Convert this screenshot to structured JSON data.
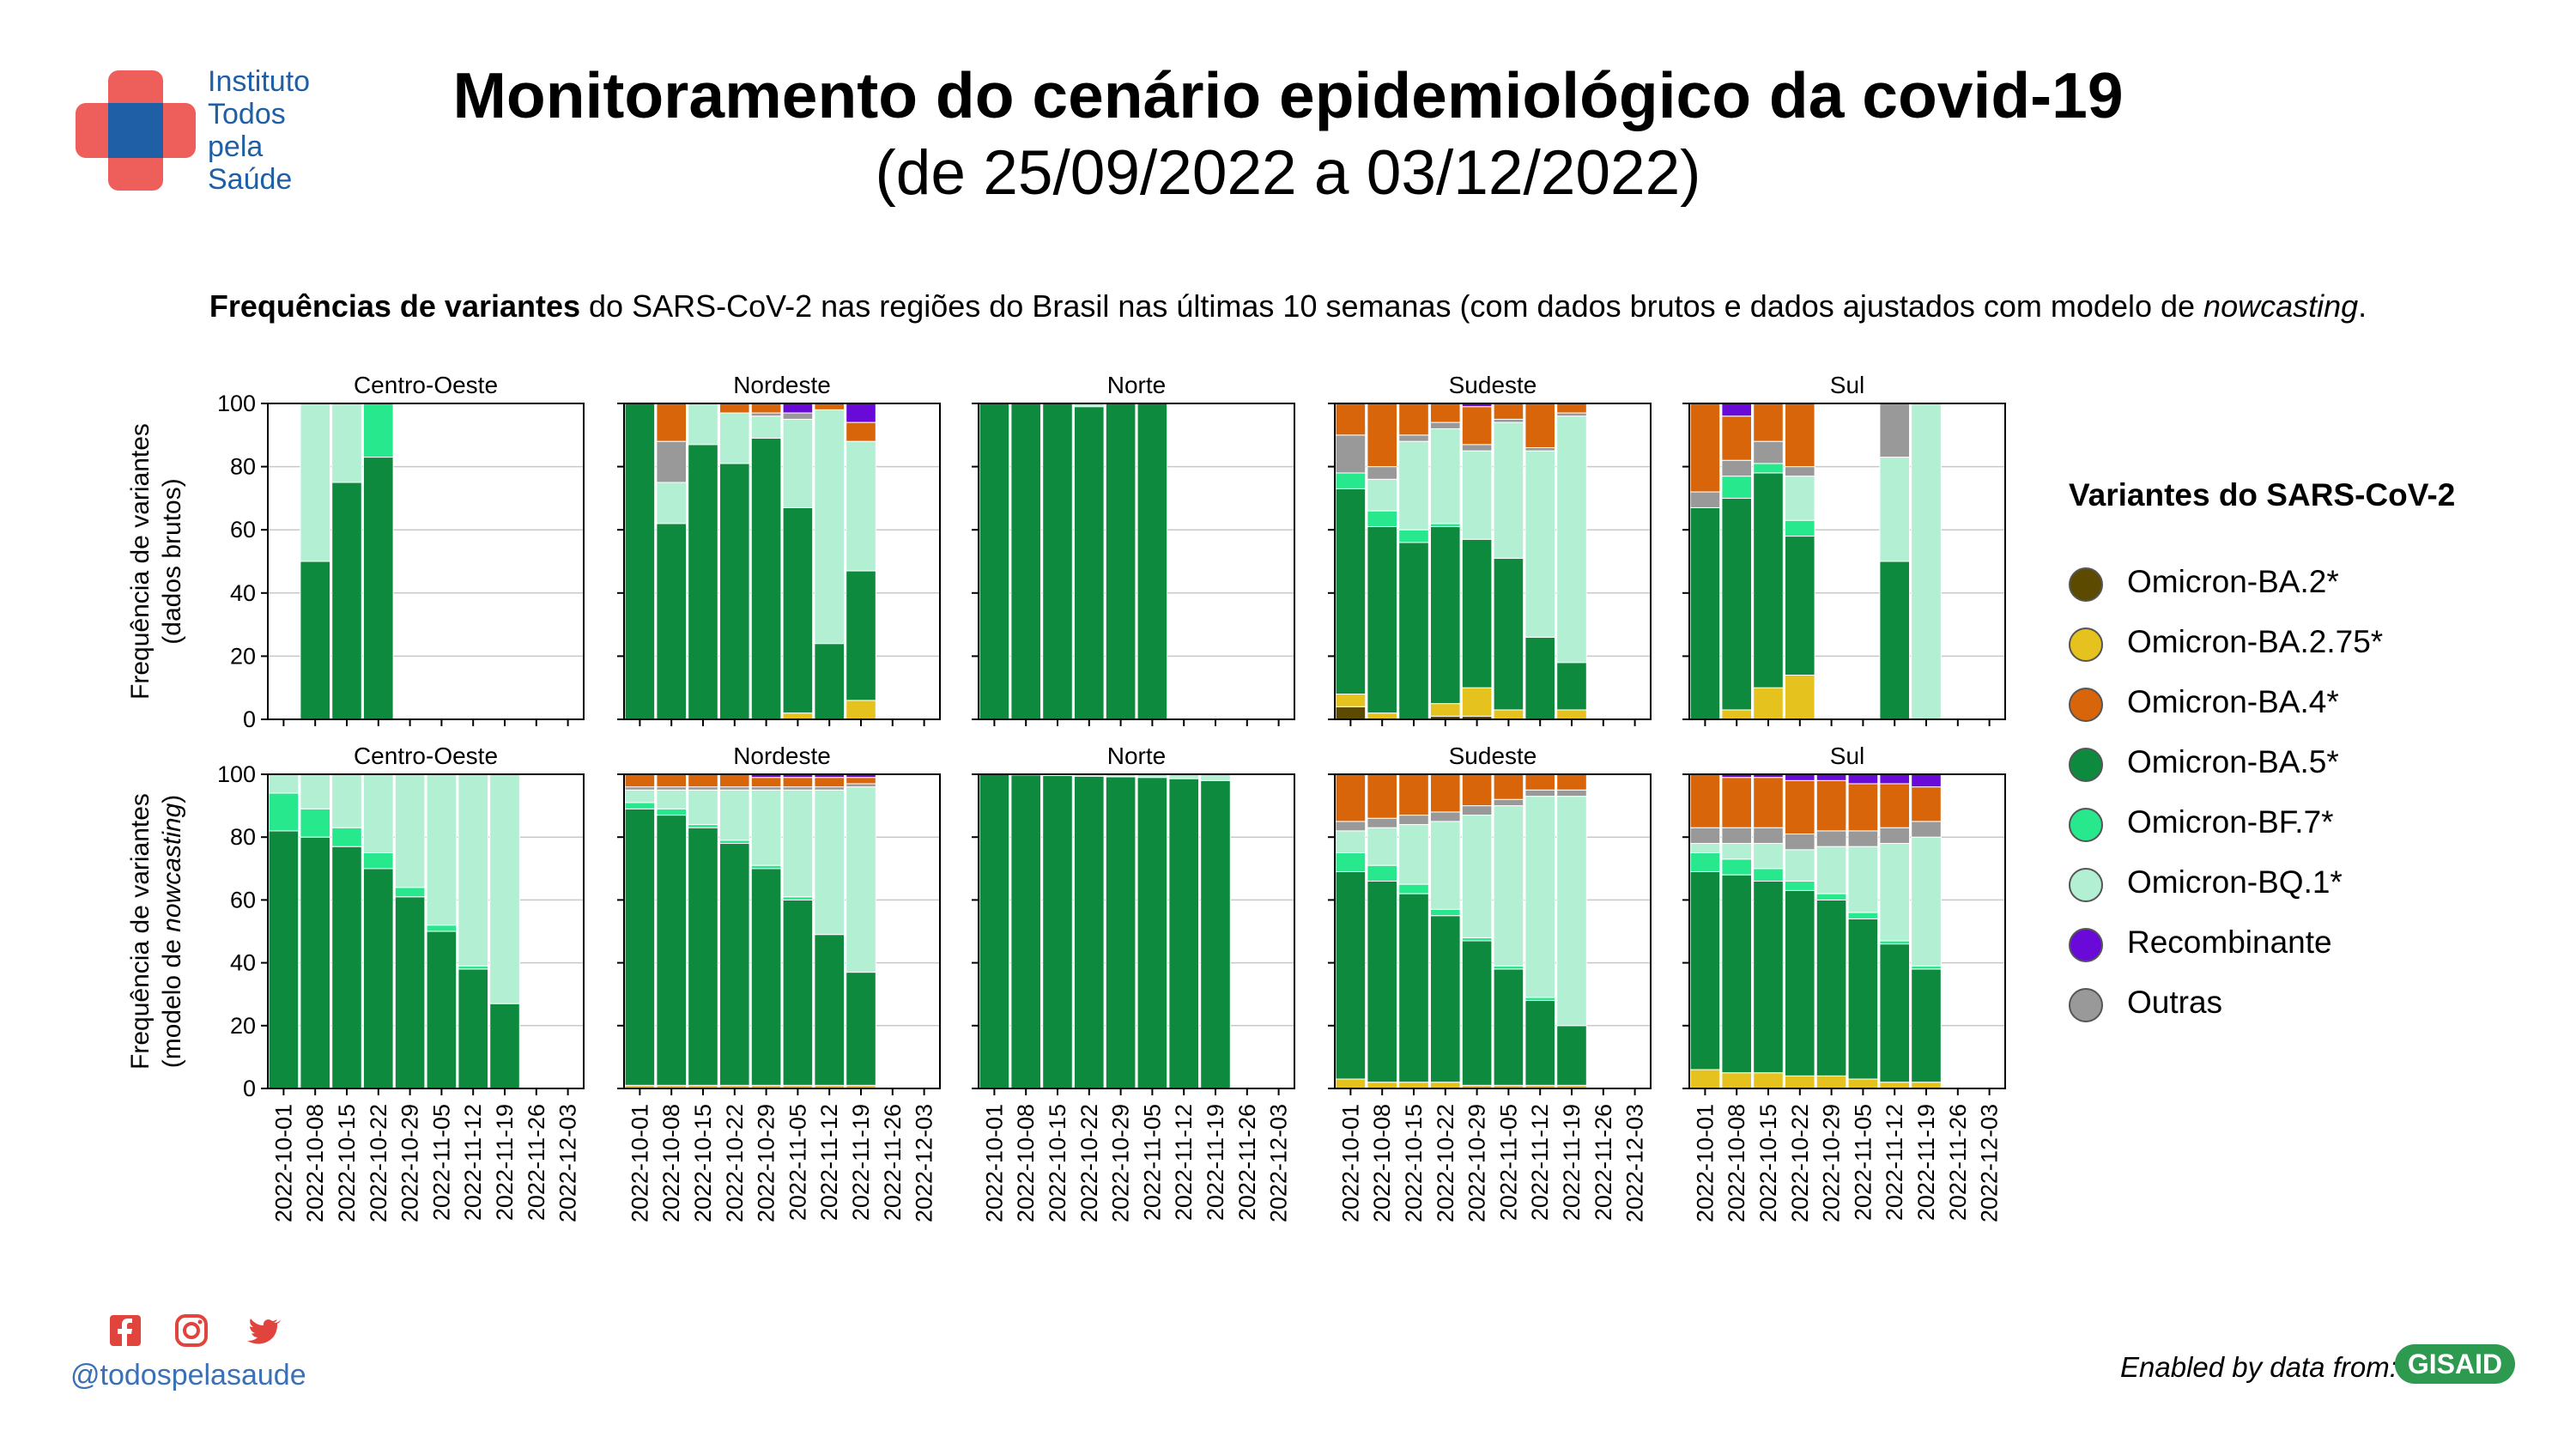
{
  "header": {
    "logo_lines": [
      "Instituto",
      "Todos",
      "pela",
      "Saúde"
    ],
    "title": "Monitoramento do cenário epidemiológico da covid-19",
    "subtitle": "(de 25/09/2022 a 03/12/2022)",
    "description_bold": "Frequências de variantes",
    "description_middle": " do SARS-CoV-2 nas regiões do Brasil nas últimas 10 semanas (com dados brutos e dados ajustados com modelo de ",
    "description_italic": "nowcasting",
    "description_end": "."
  },
  "legend": {
    "title": "Variantes do SARS-CoV-2",
    "items": [
      {
        "label": "Omicron-BA.2*",
        "color": "#5c4a00"
      },
      {
        "label": "Omicron-BA.2.75*",
        "color": "#e6c21f"
      },
      {
        "label": "Omicron-BA.4*",
        "color": "#d8650a"
      },
      {
        "label": "Omicron-BA.5*",
        "color": "#0e8a3e"
      },
      {
        "label": "Omicron-BF.7*",
        "color": "#27e88c"
      },
      {
        "label": "Omicron-BQ.1*",
        "color": "#b3efd3"
      },
      {
        "label": "Recombinante",
        "color": "#6a0ad8"
      },
      {
        "label": "Outras",
        "color": "#999999"
      }
    ]
  },
  "footer": {
    "handle": "@todospelasaude",
    "credit": "Enabled by data from:",
    "gisaid": "GISAID"
  },
  "chart_data": {
    "type": "bar",
    "stacked": true,
    "dates": [
      "2022-10-01",
      "2022-10-08",
      "2022-10-15",
      "2022-10-22",
      "2022-10-29",
      "2022-11-05",
      "2022-11-12",
      "2022-11-19",
      "2022-11-26",
      "2022-12-03"
    ],
    "ylim": [
      0,
      100
    ],
    "yticks": [
      0,
      20,
      40,
      60,
      80,
      100
    ],
    "row_ylabels": [
      [
        "Frequência de variantes",
        "(dados brutos)"
      ],
      [
        "Frequência de variantes",
        "(modelo de ",
        "nowcasting",
        ")"
      ]
    ],
    "stack_order": [
      "Omicron-BA.2*",
      "Omicron-BA.2.75*",
      "Omicron-BA.5*",
      "Omicron-BF.7*",
      "Omicron-BQ.1*",
      "Outras",
      "Omicron-BA.4*",
      "Recombinante"
    ],
    "panels": [
      {
        "row": "raw",
        "region": "Centro-Oeste",
        "bars": [
          null,
          {
            "BA.5": 50,
            "BQ.1": 50
          },
          {
            "BA.5": 75,
            "BQ.1": 25
          },
          {
            "BA.5": 83,
            "BF.7": 17
          },
          null,
          null,
          null,
          null,
          null,
          null
        ]
      },
      {
        "row": "raw",
        "region": "Nordeste",
        "bars": [
          {
            "BA.5": 100
          },
          {
            "BA.5": 62,
            "BQ.1": 13,
            "Outras": 13,
            "BA.4": 12
          },
          {
            "BA.5": 87,
            "BQ.1": 13
          },
          {
            "BA.5": 81,
            "BQ.1": 16,
            "BA.4": 3
          },
          {
            "BA.5": 89,
            "BQ.1": 7,
            "BA.4": 3,
            "Outras": 1
          },
          {
            "BA.5": 65,
            "BQ.1": 28,
            "BA.2.75": 2,
            "Outras": 2,
            "Recombinante": 3
          },
          {
            "BA.5": 24,
            "BQ.1": 74,
            "BA.4": 2
          },
          {
            "BA.5": 41,
            "BQ.1": 41,
            "BA.4": 6,
            "BA.2.75": 6,
            "Recombinante": 6
          },
          null,
          null
        ]
      },
      {
        "row": "raw",
        "region": "Norte",
        "bars": [
          {
            "BA.5": 100
          },
          {
            "BA.5": 100
          },
          {
            "BA.5": 100
          },
          {
            "BA.5": 99,
            "BQ.1": 1
          },
          {
            "BA.5": 100
          },
          {
            "BA.5": 100
          },
          null,
          null,
          null,
          null
        ]
      },
      {
        "row": "raw",
        "region": "Sudeste",
        "bars": [
          {
            "BA.2.75": 4,
            "BA.5": 65,
            "Outras": 12,
            "BA.4": 10,
            "BA.2": 4,
            "BF.7": 5
          },
          {
            "BA.5": 59,
            "BQ.1": 10,
            "Outras": 4,
            "BA.4": 20,
            "BF.7": 5,
            "BA.2.75": 2
          },
          {
            "BA.5": 56,
            "BQ.1": 28,
            "Outras": 2,
            "BA.4": 10,
            "BF.7": 4
          },
          {
            "BF.7": 1,
            "BA.5": 56,
            "BQ.1": 30,
            "Outras": 2,
            "BA.4": 6,
            "BA.2.75": 4,
            "BA.2": 1
          },
          {
            "BA.5": 47,
            "BQ.1": 28,
            "Outras": 2,
            "BA.4": 12,
            "BA.2": 1,
            "BA.2.75": 9,
            "Recombinante": 1
          },
          {
            "BA.5": 48,
            "BQ.1": 43,
            "Outras": 1,
            "BA.4": 5,
            "BA.2.75": 3
          },
          {
            "BA.5": 26,
            "BQ.1": 59,
            "Outras": 1,
            "BA.4": 14
          },
          {
            "BA.5": 15,
            "BQ.1": 78,
            "Outras": 1,
            "BA.4": 3,
            "BA.2.75": 3
          },
          null,
          null
        ]
      },
      {
        "row": "raw",
        "region": "Sul",
        "bars": [
          {
            "BA.5": 67,
            "Outras": 5,
            "BA.4": 28
          },
          {
            "BA.5": 67,
            "Outras": 5,
            "BA.4": 14,
            "BF.7": 7,
            "BA.2.75": 3,
            "Recombinante": 4
          },
          {
            "BF.7": 3,
            "BA.5": 68,
            "Outras": 7,
            "BA.4": 12,
            "BA.2.75": 10
          },
          {
            "BA.5": 44,
            "BQ.1": 14,
            "Outras": 3,
            "BA.4": 20,
            "BF.7": 5,
            "BA.2.75": 14
          },
          null,
          null,
          {
            "BA.5": 50,
            "BQ.1": 33,
            "Outras": 17
          },
          {
            "BQ.1": 100
          },
          null,
          null
        ]
      },
      {
        "row": "nowcast",
        "region": "Centro-Oeste",
        "bars": [
          {
            "BA.5": 82,
            "BF.7": 12,
            "BQ.1": 6
          },
          {
            "BA.5": 80,
            "BF.7": 9,
            "BQ.1": 11
          },
          {
            "BA.5": 77,
            "BF.7": 6,
            "BQ.1": 17
          },
          {
            "BA.5": 70,
            "BF.7": 5,
            "BQ.1": 25
          },
          {
            "BA.5": 61,
            "BF.7": 3,
            "BQ.1": 36
          },
          {
            "BA.5": 50,
            "BF.7": 2,
            "BQ.1": 48
          },
          {
            "BA.5": 38,
            "BF.7": 1,
            "BQ.1": 61
          },
          {
            "BA.5": 27,
            "BQ.1": 73
          },
          null,
          null
        ]
      },
      {
        "row": "nowcast",
        "region": "Nordeste",
        "bars": [
          {
            "BA.2.75": 1,
            "BA.5": 88,
            "BF.7": 2,
            "BQ.1": 4,
            "Outras": 1,
            "BA.4": 4
          },
          {
            "BA.2.75": 1,
            "BA.5": 86,
            "BF.7": 2,
            "BQ.1": 6,
            "Outras": 1,
            "BA.4": 4
          },
          {
            "BA.2.75": 1,
            "BA.5": 82,
            "BF.7": 1,
            "BQ.1": 11,
            "Outras": 1,
            "BA.4": 4
          },
          {
            "BA.2.75": 1,
            "BA.5": 77,
            "BF.7": 1,
            "BQ.1": 16,
            "Outras": 1,
            "BA.4": 4
          },
          {
            "BA.2.75": 1,
            "BA.5": 69,
            "BF.7": 1,
            "BQ.1": 24,
            "Outras": 1,
            "BA.4": 3,
            "Recombinante": 1
          },
          {
            "BA.2.75": 1,
            "BA.5": 59,
            "BF.7": 1,
            "BQ.1": 34,
            "Outras": 1,
            "BA.4": 3,
            "Recombinante": 1
          },
          {
            "BA.2.75": 1,
            "BA.5": 48,
            "BQ.1": 46,
            "Outras": 1,
            "BA.4": 3,
            "Recombinante": 1
          },
          {
            "BA.2.75": 1,
            "BA.5": 36,
            "BQ.1": 59,
            "Outras": 1,
            "BA.4": 2,
            "Recombinante": 1
          },
          null,
          null
        ]
      },
      {
        "row": "nowcast",
        "region": "Norte",
        "bars": [
          {
            "BA.5": 100
          },
          {
            "BA.5": 99.8,
            "BQ.1": 0.2
          },
          {
            "BA.5": 99.6,
            "BQ.1": 0.4
          },
          {
            "BA.5": 99.4,
            "BQ.1": 0.6
          },
          {
            "BA.5": 99.2,
            "BQ.1": 0.8
          },
          {
            "BA.5": 99,
            "BQ.1": 1
          },
          {
            "BA.5": 98.6,
            "BQ.1": 1.4
          },
          {
            "BA.5": 98,
            "BQ.1": 2
          },
          null,
          null
        ]
      },
      {
        "row": "nowcast",
        "region": "Sudeste",
        "bars": [
          {
            "BA.2.75": 3,
            "BA.5": 66,
            "BF.7": 6,
            "BQ.1": 7,
            "Outras": 3,
            "BA.4": 15
          },
          {
            "BA.2.75": 2,
            "BA.5": 64,
            "BF.7": 5,
            "BQ.1": 12,
            "Outras": 3,
            "BA.4": 14
          },
          {
            "BA.2.75": 2,
            "BA.5": 60,
            "BF.7": 3,
            "BQ.1": 19,
            "Outras": 3,
            "BA.4": 13
          },
          {
            "BA.2.75": 2,
            "BA.5": 53,
            "BF.7": 2,
            "BQ.1": 28,
            "Outras": 3,
            "BA.4": 12
          },
          {
            "BA.2.75": 1,
            "BA.5": 46,
            "BF.7": 1,
            "BQ.1": 39,
            "Outras": 3,
            "BA.4": 10
          },
          {
            "BA.2.75": 1,
            "BA.5": 37,
            "BF.7": 1,
            "BQ.1": 51,
            "Outras": 2,
            "BA.4": 8
          },
          {
            "BA.2.75": 1,
            "BA.5": 27,
            "BF.7": 1,
            "BQ.1": 64,
            "Outras": 2,
            "BA.4": 5
          },
          {
            "BA.2.75": 1,
            "BA.5": 19,
            "BQ.1": 73,
            "Outras": 2,
            "BA.4": 5
          },
          null,
          null
        ]
      },
      {
        "row": "nowcast",
        "region": "Sul",
        "bars": [
          {
            "BA.2.75": 6,
            "BA.5": 63,
            "BF.7": 6,
            "BQ.1": 3,
            "Outras": 5,
            "BA.4": 17
          },
          {
            "BA.2.75": 5,
            "BA.5": 63,
            "BF.7": 5,
            "BQ.1": 5,
            "Outras": 5,
            "BA.4": 16,
            "Recombinante": 1
          },
          {
            "BA.2.75": 5,
            "BA.5": 61,
            "BF.7": 4,
            "BQ.1": 8,
            "Outras": 5,
            "BA.4": 16,
            "Recombinante": 1
          },
          {
            "BA.2.75": 4,
            "BA.5": 59,
            "BF.7": 3,
            "BQ.1": 10,
            "Outras": 5,
            "BA.4": 17,
            "Recombinante": 2
          },
          {
            "BA.2.75": 4,
            "BA.5": 56,
            "BF.7": 2,
            "BQ.1": 15,
            "Outras": 5,
            "BA.4": 16,
            "Recombinante": 2
          },
          {
            "BA.2.75": 3,
            "BA.5": 51,
            "BF.7": 2,
            "BQ.1": 21,
            "Outras": 5,
            "BA.4": 15,
            "Recombinante": 3
          },
          {
            "BA.2.75": 2,
            "BA.5": 44,
            "BF.7": 1,
            "BQ.1": 31,
            "Outras": 5,
            "BA.4": 14,
            "Recombinante": 3
          },
          {
            "BA.2.75": 2,
            "BA.5": 36,
            "BF.7": 1,
            "BQ.1": 41,
            "Outras": 5,
            "BA.4": 11,
            "Recombinante": 4
          },
          null,
          null
        ]
      }
    ]
  }
}
